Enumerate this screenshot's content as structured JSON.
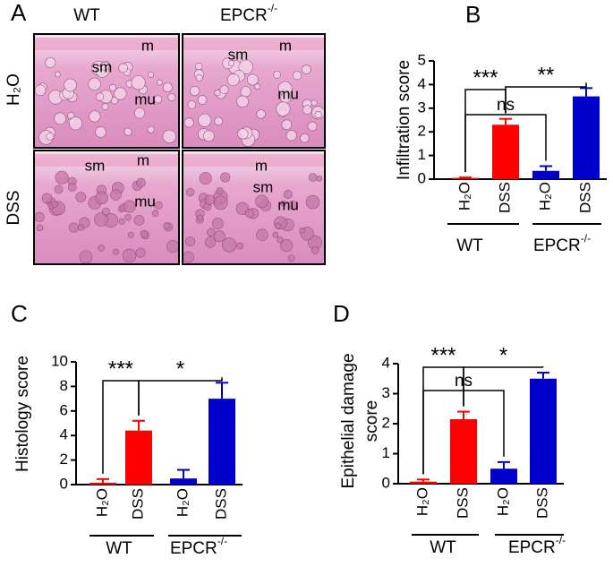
{
  "panel_a": {
    "label": "A",
    "columns": [
      {
        "name": "WT"
      },
      {
        "name": "EPCR",
        "superscript": "-/-"
      }
    ],
    "rows": [
      "H₂O",
      "DSS"
    ],
    "images": [
      [
        "sm",
        "m",
        "mu"
      ],
      [
        "sm",
        "m",
        "mu"
      ],
      [
        "sm",
        "m",
        "mu"
      ],
      [
        "m",
        "sm",
        "mu"
      ]
    ]
  },
  "chart_data": [
    {
      "type": "bar",
      "panel": "B",
      "ylabel": [
        "Infiltration score"
      ],
      "categories": [
        "H₂O",
        "DSS",
        "H₂O",
        "DSS"
      ],
      "groups": [
        {
          "name": "WT"
        },
        {
          "name": "EPCR",
          "superscript": "-/-"
        }
      ],
      "values": [
        0.05,
        2.3,
        0.35,
        3.5
      ],
      "errors": [
        0.02,
        0.25,
        0.2,
        0.35
      ],
      "colors": [
        "#ff0000",
        "#ff0000",
        "#0000cc",
        "#0000cc"
      ],
      "ylim": [
        0,
        5
      ],
      "yticks": [
        0,
        1,
        2,
        3,
        4,
        5
      ],
      "annotations": [
        "***",
        "**",
        "ns"
      ]
    },
    {
      "type": "bar",
      "panel": "C",
      "ylabel": [
        "Histology score"
      ],
      "categories": [
        "H₂O",
        "DSS",
        "H₂O",
        "DSS"
      ],
      "groups": [
        {
          "name": "WT"
        },
        {
          "name": "EPCR",
          "superscript": "-/-"
        }
      ],
      "values": [
        0.15,
        4.4,
        0.5,
        7.0
      ],
      "errors": [
        0.3,
        0.8,
        0.7,
        1.3
      ],
      "colors": [
        "#ff0000",
        "#ff0000",
        "#0000cc",
        "#0000cc"
      ],
      "ylim": [
        0,
        10
      ],
      "yticks": [
        0,
        2,
        4,
        6,
        8,
        10
      ],
      "annotations": [
        "***",
        "*"
      ]
    },
    {
      "type": "bar",
      "panel": "D",
      "ylabel": [
        "Epithelial damage",
        "score"
      ],
      "categories": [
        "H₂O",
        "DSS",
        "H₂O",
        "DSS"
      ],
      "groups": [
        {
          "name": "WT"
        },
        {
          "name": "EPCR",
          "superscript": "-/-"
        }
      ],
      "values": [
        0.07,
        2.15,
        0.5,
        3.5
      ],
      "errors": [
        0.07,
        0.25,
        0.22,
        0.2
      ],
      "colors": [
        "#ff0000",
        "#ff0000",
        "#0000cc",
        "#0000cc"
      ],
      "ylim": [
        0,
        4
      ],
      "yticks": [
        0,
        1,
        2,
        3,
        4
      ],
      "annotations": [
        "***",
        "ns",
        "*"
      ]
    }
  ]
}
